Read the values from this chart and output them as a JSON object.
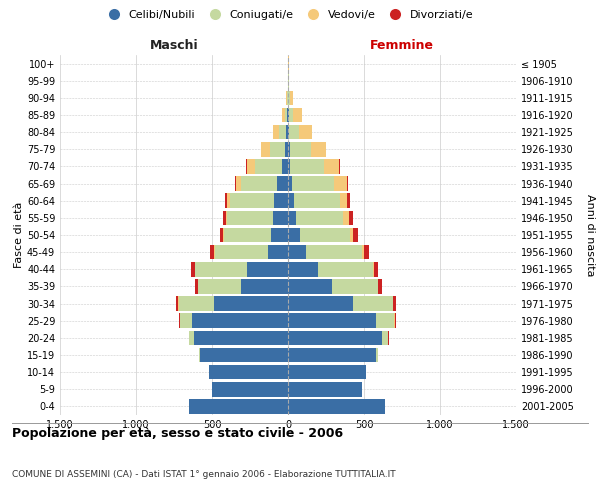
{
  "age_groups": [
    "0-4",
    "5-9",
    "10-14",
    "15-19",
    "20-24",
    "25-29",
    "30-34",
    "35-39",
    "40-44",
    "45-49",
    "50-54",
    "55-59",
    "60-64",
    "65-69",
    "70-74",
    "75-79",
    "80-84",
    "85-89",
    "90-94",
    "95-99",
    "100+"
  ],
  "birth_years": [
    "2001-2005",
    "1996-2000",
    "1991-1995",
    "1986-1990",
    "1981-1985",
    "1976-1980",
    "1971-1975",
    "1966-1970",
    "1961-1965",
    "1956-1960",
    "1951-1955",
    "1946-1950",
    "1941-1945",
    "1936-1940",
    "1931-1935",
    "1926-1930",
    "1921-1925",
    "1916-1920",
    "1911-1915",
    "1906-1910",
    "≤ 1905"
  ],
  "colors": {
    "celibi": "#3a6ea5",
    "coniugati": "#c5d9a0",
    "vedovi": "#f5c97a",
    "divorziati": "#cc2222"
  },
  "maschi": {
    "celibi": [
      650,
      500,
      520,
      580,
      620,
      630,
      490,
      310,
      270,
      130,
      110,
      100,
      90,
      70,
      40,
      20,
      10,
      5,
      3,
      2,
      2
    ],
    "coniugati": [
      0,
      0,
      3,
      5,
      30,
      80,
      230,
      280,
      340,
      350,
      310,
      300,
      290,
      240,
      180,
      100,
      50,
      15,
      5,
      0,
      0
    ],
    "vedovi": [
      0,
      0,
      0,
      0,
      0,
      0,
      2,
      3,
      5,
      5,
      10,
      10,
      20,
      30,
      50,
      60,
      40,
      20,
      5,
      0,
      0
    ],
    "divorziati": [
      0,
      0,
      0,
      0,
      2,
      5,
      15,
      20,
      25,
      25,
      20,
      20,
      15,
      10,
      5,
      0,
      0,
      0,
      0,
      0,
      0
    ]
  },
  "femmine": {
    "celibi": [
      640,
      490,
      510,
      580,
      620,
      580,
      430,
      290,
      200,
      120,
      80,
      55,
      40,
      25,
      15,
      10,
      5,
      5,
      3,
      2,
      2
    ],
    "coniugati": [
      0,
      0,
      3,
      10,
      40,
      120,
      260,
      300,
      360,
      370,
      330,
      310,
      300,
      280,
      220,
      140,
      70,
      30,
      10,
      2,
      0
    ],
    "vedovi": [
      0,
      0,
      0,
      0,
      0,
      2,
      3,
      5,
      5,
      10,
      20,
      35,
      50,
      80,
      100,
      100,
      80,
      55,
      20,
      5,
      2
    ],
    "divorziati": [
      0,
      0,
      0,
      0,
      3,
      10,
      20,
      25,
      30,
      35,
      30,
      25,
      15,
      10,
      5,
      0,
      0,
      0,
      0,
      0,
      0
    ]
  },
  "xlim": 1500,
  "xticks": [
    -1500,
    -1000,
    -500,
    0,
    500,
    1000,
    1500
  ],
  "xticklabels": [
    "1.500",
    "1.000",
    "500",
    "0",
    "500",
    "1.000",
    "1.500"
  ],
  "title": "Popolazione per età, sesso e stato civile - 2006",
  "subtitle": "COMUNE DI ASSEMINI (CA) - Dati ISTAT 1° gennaio 2006 - Elaborazione TUTTITALIA.IT",
  "ylabel_left": "Fasce di età",
  "ylabel_right": "Anni di nascita",
  "maschi_label": "Maschi",
  "femmine_label": "Femmine",
  "legend_labels": [
    "Celibi/Nubili",
    "Coniugati/e",
    "Vedovi/e",
    "Divorziati/e"
  ],
  "bg_color": "#ffffff",
  "grid_color": "#cccccc"
}
